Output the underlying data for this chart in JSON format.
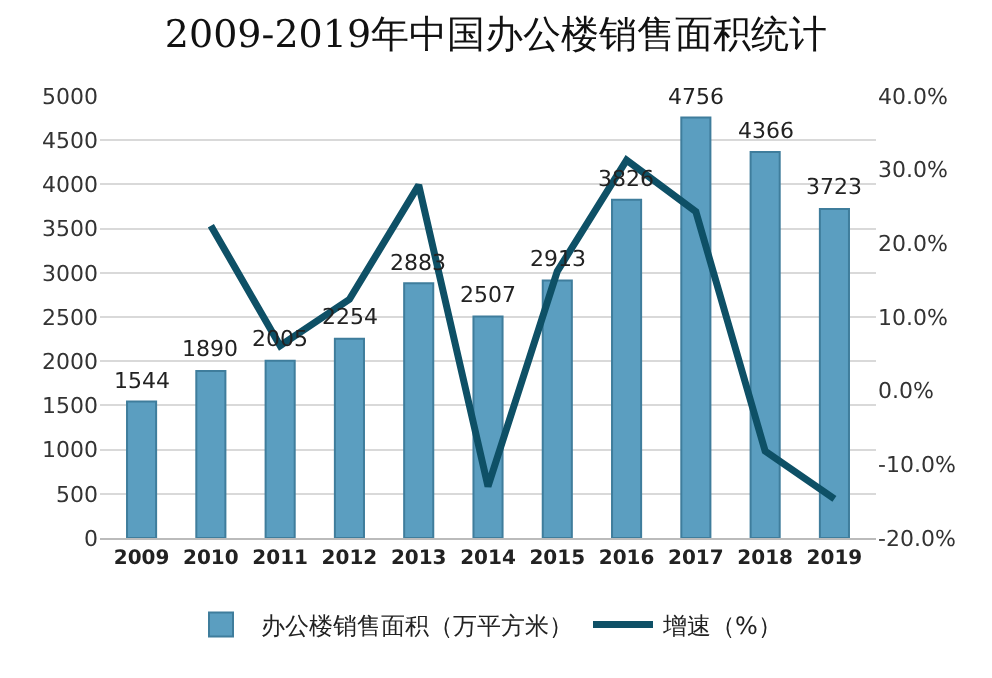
{
  "chart_data": {
    "type": "bar",
    "title": "2009-2019年中国办公楼销售面积统计",
    "categories": [
      "2009",
      "2010",
      "2011",
      "2012",
      "2013",
      "2014",
      "2015",
      "2016",
      "2017",
      "2018",
      "2019"
    ],
    "series": [
      {
        "name": "办公楼销售面积（万平方米）",
        "color": "#5b9ec0",
        "values": [
          1544,
          1890,
          2005,
          2254,
          2883,
          2507,
          2913,
          3826,
          4756,
          4366,
          3723
        ],
        "data_labels": true
      },
      {
        "name": "增速（%）",
        "type": "line",
        "axis": "y2",
        "color": "#0e5066",
        "values": [
          null,
          22.4,
          6.1,
          12.4,
          27.9,
          -13.0,
          16.2,
          31.3,
          24.3,
          -8.2,
          -14.7
        ],
        "marker": "none",
        "line_style": "solid"
      }
    ],
    "ylim": [
      0,
      5000
    ],
    "yticks": [
      0,
      500,
      1000,
      1500,
      2000,
      2500,
      3000,
      3500,
      4000,
      4500,
      5000
    ],
    "y2lim": [
      -20,
      40
    ],
    "y2ticks": [
      {
        "value": -20,
        "label": "-20.0%"
      },
      {
        "value": -10,
        "label": "-10.0%"
      },
      {
        "value": 0,
        "label": "0.0%"
      },
      {
        "value": 10,
        "label": "10.0%"
      },
      {
        "value": 20,
        "label": "20.0%"
      },
      {
        "value": 30,
        "label": "30.0%"
      },
      {
        "value": 40,
        "label": "40.0%"
      }
    ],
    "grid": "y",
    "legend": "bottom"
  }
}
